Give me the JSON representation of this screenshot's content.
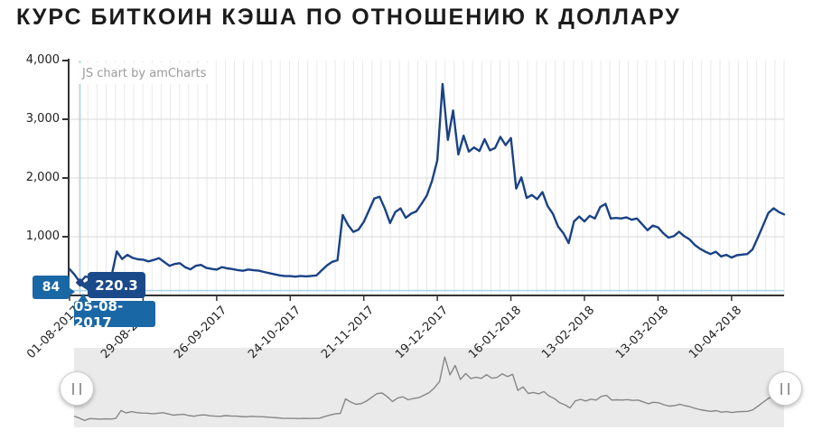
{
  "title": "КУРС БИТКОИН КЭША ПО ОТНОШЕНИЮ К ДОЛЛАРУ",
  "watermark": "JS chart by amCharts",
  "cursor": {
    "axis_value_badge": "84",
    "value_balloon": "220.3",
    "date_balloon": "05-08-2017"
  },
  "colors": {
    "line": "#1a4285",
    "cursor_line": "#a7d1e8",
    "value_balloon_bg": "#1b4a8a",
    "axis_balloon_bg": "#1a67a5",
    "nav_bg": "#eaeaea",
    "nav_line": "#878787",
    "grid_minor": "#e9e9e9",
    "grid_major": "#d9d9d9",
    "axis": "#333333",
    "label_text": "#222222",
    "watermark_text": "#9b9b9b"
  },
  "chart_data": {
    "type": "line",
    "title": "КУРС БИТКОИН КЭША ПО ОТНОШЕНИЮ К ДОЛЛАРУ",
    "xlabel": "",
    "ylabel": "",
    "ylim": [
      0,
      4000
    ],
    "yticks": [
      0,
      1000,
      2000,
      3000,
      4000
    ],
    "ytick_labels": [
      "0",
      "1,000",
      "2,000",
      "3,000",
      "4,000"
    ],
    "xtick_labels": [
      "01-08-2017",
      "29-08-2017",
      "26-09-2017",
      "24-10-2017",
      "21-11-2017",
      "19-12-2017",
      "16-01-2018",
      "13-02-2018",
      "13-03-2018",
      "10-04-2018"
    ],
    "xtick_point_index": [
      0,
      14,
      28,
      42,
      56,
      70,
      84,
      98,
      112,
      126
    ],
    "grid": true,
    "legend": false,
    "navigator": true,
    "cursor": {
      "date": "05-08-2017",
      "value": 220.3,
      "axis_value": 84,
      "point_index": 2
    },
    "x": [
      "01-08-2017",
      "03-08-2017",
      "05-08-2017",
      "07-08-2017",
      "09-08-2017",
      "11-08-2017",
      "13-08-2017",
      "15-08-2017",
      "17-08-2017",
      "19-08-2017",
      "21-08-2017",
      "23-08-2017",
      "25-08-2017",
      "27-08-2017",
      "29-08-2017",
      "31-08-2017",
      "02-09-2017",
      "04-09-2017",
      "06-09-2017",
      "08-09-2017",
      "10-09-2017",
      "12-09-2017",
      "14-09-2017",
      "16-09-2017",
      "18-09-2017",
      "20-09-2017",
      "22-09-2017",
      "24-09-2017",
      "26-09-2017",
      "28-09-2017",
      "30-09-2017",
      "02-10-2017",
      "04-10-2017",
      "06-10-2017",
      "08-10-2017",
      "10-10-2017",
      "12-10-2017",
      "14-10-2017",
      "16-10-2017",
      "18-10-2017",
      "20-10-2017",
      "22-10-2017",
      "24-10-2017",
      "26-10-2017",
      "28-10-2017",
      "30-10-2017",
      "01-11-2017",
      "03-11-2017",
      "05-11-2017",
      "07-11-2017",
      "09-11-2017",
      "11-11-2017",
      "13-11-2017",
      "15-11-2017",
      "17-11-2017",
      "19-11-2017",
      "21-11-2017",
      "23-11-2017",
      "25-11-2017",
      "27-11-2017",
      "29-11-2017",
      "01-12-2017",
      "03-12-2017",
      "05-12-2017",
      "07-12-2017",
      "09-12-2017",
      "11-12-2017",
      "13-12-2017",
      "15-12-2017",
      "17-12-2017",
      "19-12-2017",
      "21-12-2017",
      "23-12-2017",
      "25-12-2017",
      "27-12-2017",
      "29-12-2017",
      "31-12-2017",
      "02-01-2018",
      "04-01-2018",
      "06-01-2018",
      "08-01-2018",
      "10-01-2018",
      "12-01-2018",
      "14-01-2018",
      "16-01-2018",
      "18-01-2018",
      "20-01-2018",
      "22-01-2018",
      "24-01-2018",
      "26-01-2018",
      "28-01-2018",
      "30-01-2018",
      "01-02-2018",
      "03-02-2018",
      "05-02-2018",
      "07-02-2018",
      "09-02-2018",
      "11-02-2018",
      "13-02-2018",
      "15-02-2018",
      "17-02-2018",
      "19-02-2018",
      "21-02-2018",
      "23-02-2018",
      "25-02-2018",
      "27-02-2018",
      "01-03-2018",
      "03-03-2018",
      "05-03-2018",
      "07-03-2018",
      "09-03-2018",
      "11-03-2018",
      "13-03-2018",
      "15-03-2018",
      "17-03-2018",
      "19-03-2018",
      "21-03-2018",
      "23-03-2018",
      "25-03-2018",
      "27-03-2018",
      "29-03-2018",
      "31-03-2018",
      "02-04-2018",
      "04-04-2018",
      "06-04-2018",
      "08-04-2018",
      "10-04-2018",
      "12-04-2018",
      "14-04-2018",
      "16-04-2018",
      "18-04-2018",
      "20-04-2018",
      "22-04-2018",
      "24-04-2018",
      "26-04-2018",
      "28-04-2018",
      "30-04-2018"
    ],
    "y": [
      450,
      350,
      220.3,
      320,
      310,
      295,
      310,
      300,
      335,
      750,
      620,
      690,
      640,
      615,
      610,
      580,
      605,
      635,
      570,
      505,
      535,
      550,
      480,
      445,
      505,
      520,
      470,
      452,
      440,
      482,
      462,
      450,
      432,
      420,
      442,
      430,
      422,
      400,
      380,
      360,
      342,
      330,
      330,
      320,
      332,
      325,
      332,
      342,
      430,
      512,
      572,
      600,
      1370,
      1200,
      1082,
      1122,
      1252,
      1450,
      1650,
      1682,
      1480,
      1232,
      1422,
      1482,
      1322,
      1392,
      1432,
      1562,
      1702,
      1952,
      2300,
      3600,
      2650,
      3150,
      2400,
      2720,
      2450,
      2520,
      2460,
      2660,
      2470,
      2510,
      2700,
      2560,
      2680,
      1820,
      2010,
      1660,
      1710,
      1640,
      1760,
      1520,
      1390,
      1170,
      1060,
      890,
      1260,
      1345,
      1260,
      1355,
      1310,
      1505,
      1560,
      1310,
      1320,
      1310,
      1330,
      1290,
      1310,
      1210,
      1110,
      1190,
      1160,
      1060,
      985,
      1010,
      1085,
      1010,
      955,
      860,
      795,
      745,
      705,
      745,
      665,
      690,
      645,
      685,
      695,
      705,
      785,
      985,
      1190,
      1405,
      1485,
      1420,
      1380
    ]
  }
}
